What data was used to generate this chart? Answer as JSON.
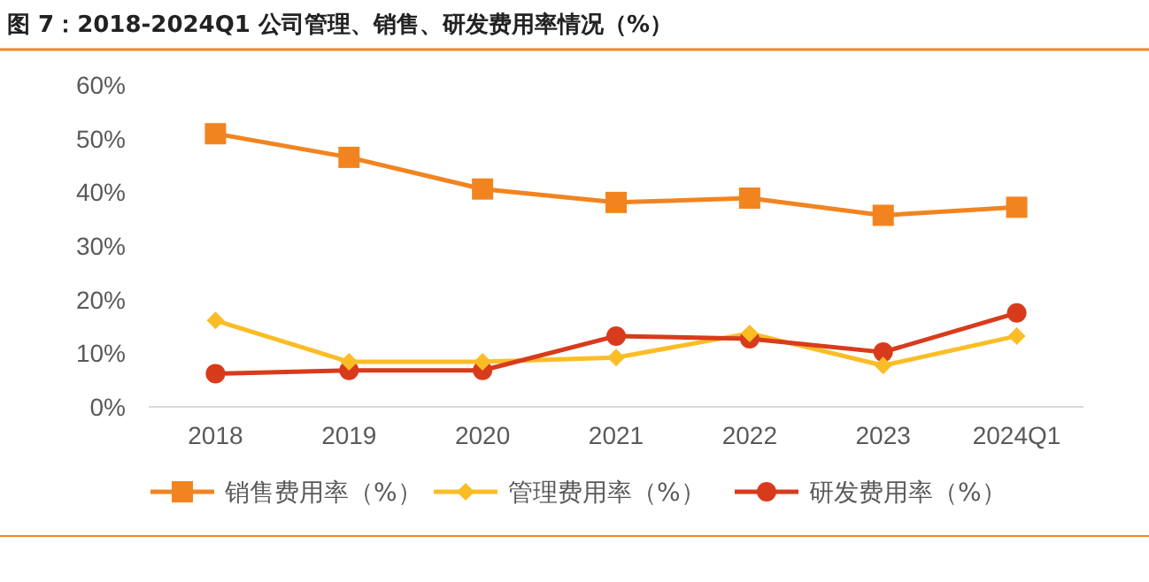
{
  "chart_data": {
    "type": "line",
    "title": "图 7：2018-2024Q1 公司管理、销售、研发费用率情况（%）",
    "categories": [
      "2018",
      "2019",
      "2020",
      "2021",
      "2022",
      "2023",
      "2024Q1"
    ],
    "series": [
      {
        "name": "销售费用率（%）",
        "color": "#f28420",
        "marker": "square",
        "values": [
          50.9,
          46.5,
          40.6,
          38.1,
          38.9,
          35.7,
          37.2
        ]
      },
      {
        "name": "管理费用率（%）",
        "color": "#fbbd26",
        "marker": "diamond",
        "values": [
          16.1,
          8.4,
          8.4,
          9.2,
          13.7,
          7.7,
          13.2
        ]
      },
      {
        "name": "研发费用率（%）",
        "color": "#d83b1b",
        "marker": "circle",
        "values": [
          6.2,
          6.8,
          6.8,
          13.2,
          12.7,
          10.2,
          17.5
        ]
      }
    ],
    "ylim": [
      0,
      60
    ],
    "yticks": [
      {
        "value": 0,
        "label": "0%"
      },
      {
        "value": 10,
        "label": "10%"
      },
      {
        "value": 20,
        "label": "20%"
      },
      {
        "value": 30,
        "label": "30%"
      },
      {
        "value": 40,
        "label": "40%"
      },
      {
        "value": 50,
        "label": "50%"
      },
      {
        "value": 60,
        "label": "60%"
      }
    ],
    "grid": false,
    "legend": "bottom"
  }
}
